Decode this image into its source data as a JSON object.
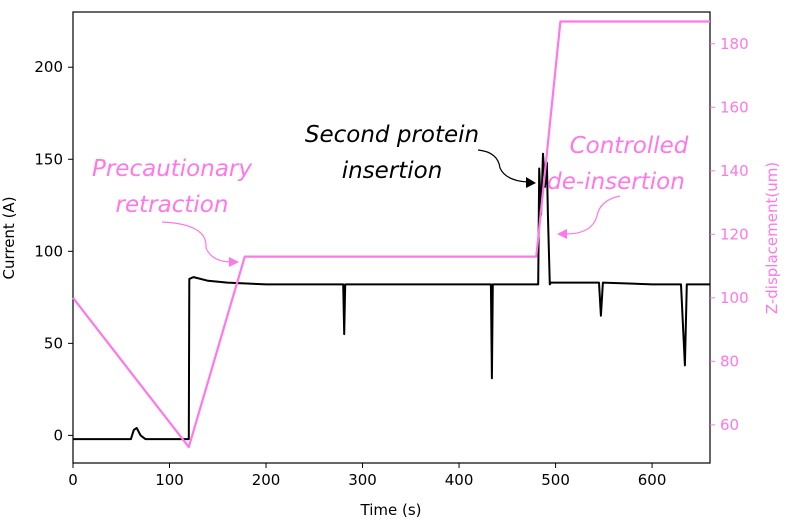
{
  "chart_data": {
    "type": "line",
    "title": "",
    "xlabel": "Time (s)",
    "ylabel_left": "Current (A)",
    "ylabel_right": "Z-displacement(um)",
    "xlim": [
      0,
      660
    ],
    "ylim_left": [
      -15,
      230
    ],
    "ylim_right": [
      48,
      190
    ],
    "grid": false,
    "legend": "none",
    "x_ticks": [
      0,
      100,
      200,
      300,
      400,
      500,
      600
    ],
    "left_ticks": [
      0,
      50,
      100,
      150,
      200
    ],
    "right_ticks": [
      60,
      80,
      100,
      120,
      140,
      160,
      180
    ],
    "colors": {
      "current": "#000000",
      "z": "#ff77e8",
      "right_axis": "#ff77e8",
      "annotation_magenta": "#ff77e8",
      "annotation_black": "#000000"
    },
    "series": [
      {
        "name": "Current",
        "axis": "left",
        "color": "#000000",
        "x": [
          0,
          60,
          63,
          66,
          70,
          75,
          118,
          120,
          120.5,
          125,
          140,
          160,
          200,
          260,
          280,
          281,
          282,
          300,
          400,
          433,
          434,
          435,
          470,
          482,
          483,
          485,
          487,
          489,
          491,
          492,
          494,
          495,
          500,
          545,
          547,
          549,
          600,
          630,
          634,
          636,
          660
        ],
        "y": [
          -2,
          -2,
          3,
          4,
          0,
          -2,
          -2,
          -2,
          85,
          86,
          84,
          83,
          82,
          82,
          82,
          55,
          82,
          82,
          82,
          82,
          31,
          82,
          82,
          82,
          145,
          120,
          153,
          135,
          148,
          120,
          82,
          83,
          83,
          83,
          65,
          83,
          82,
          82,
          38,
          82,
          82
        ]
      },
      {
        "name": "Z-displacement",
        "axis": "right",
        "color": "#ff77e8",
        "x": [
          0,
          120,
          178,
          480,
          505,
          660
        ],
        "y": [
          100,
          53,
          113,
          113,
          187,
          187
        ]
      }
    ],
    "annotations": [
      {
        "lines": [
          "Precautionary",
          "retraction"
        ],
        "color": "#ff77e8",
        "target": [
          178,
          95
        ]
      },
      {
        "lines": [
          "Second protein",
          "insertion"
        ],
        "color": "#000000",
        "target": [
          483,
          136
        ]
      },
      {
        "lines": [
          "Controlled",
          "de-insertion"
        ],
        "color": "#ff77e8",
        "target": [
          497,
          109
        ]
      }
    ]
  }
}
